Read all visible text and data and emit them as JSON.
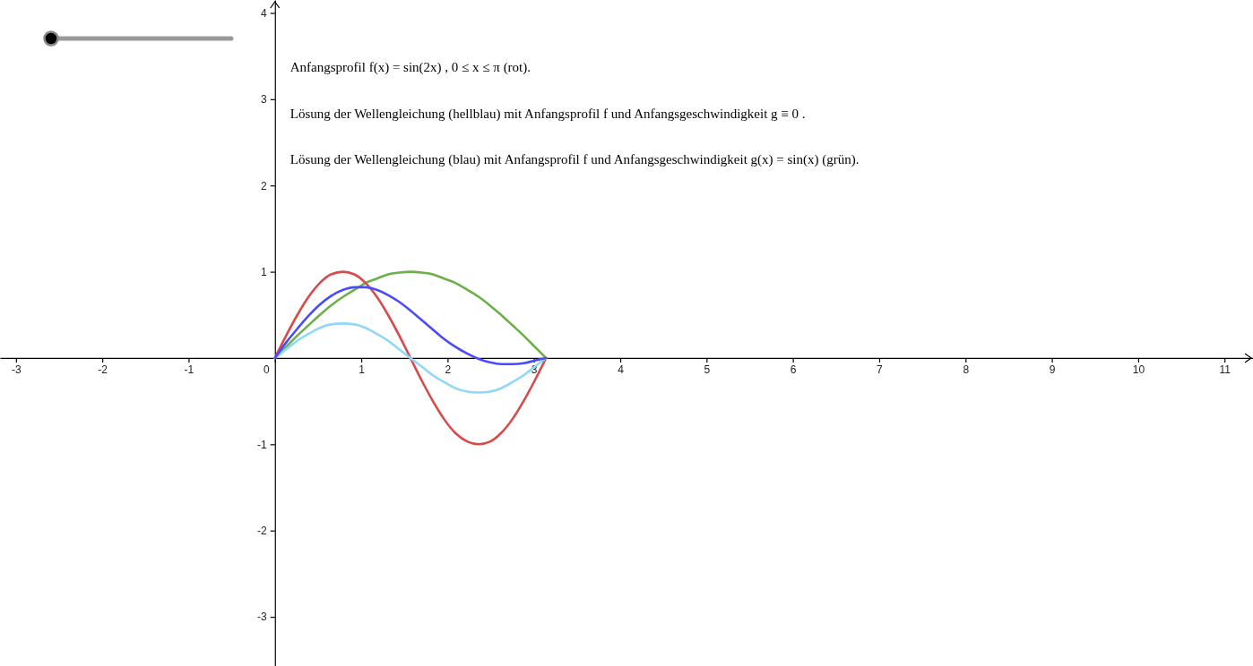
{
  "chart_data": {
    "type": "line",
    "annotations": [
      "Anfangsprofil f(x) = sin(2x) , 0 ≤ x ≤ π (rot).",
      "Lösung der Wellengleichung (hellblau) mit Anfangsprofil f und Anfangsgeschwindigkeit g ≡ 0 .",
      "Lösung der Wellengleichung (blau) mit Anfangsprofil f und Anfangsgeschwindigkeit g(x) = sin(x) (grün)."
    ],
    "xlim": [
      -3.185,
      11.33
    ],
    "ylim": [
      -3.57,
      4.15
    ],
    "xticks": [
      -3,
      -2,
      -1,
      0,
      1,
      2,
      3,
      4,
      5,
      6,
      7,
      8,
      9,
      10,
      11
    ],
    "yticks": [
      -3,
      -2,
      -1,
      1,
      2,
      3,
      4
    ],
    "x": [
      0,
      0.13,
      0.26,
      0.39,
      0.52,
      0.65,
      0.79,
      0.92,
      1.05,
      1.18,
      1.31,
      1.44,
      1.57,
      1.7,
      1.83,
      1.96,
      2.09,
      2.23,
      2.36,
      2.49,
      2.62,
      2.75,
      2.88,
      3.01,
      3.14
    ],
    "series": [
      {
        "color": "#6cb04a",
        "values": [
          0,
          0.13,
          0.26,
          0.38,
          0.5,
          0.61,
          0.71,
          0.79,
          0.87,
          0.92,
          0.97,
          0.99,
          1,
          0.99,
          0.97,
          0.92,
          0.87,
          0.79,
          0.71,
          0.61,
          0.5,
          0.38,
          0.26,
          0.13,
          0
        ]
      },
      {
        "color": "#d94a4a",
        "values": [
          0,
          0.26,
          0.5,
          0.71,
          0.87,
          0.97,
          1,
          0.97,
          0.87,
          0.71,
          0.5,
          0.26,
          0,
          -0.26,
          -0.5,
          -0.71,
          -0.87,
          -0.97,
          -1,
          -0.97,
          -0.87,
          -0.71,
          -0.5,
          -0.26,
          0
        ]
      },
      {
        "color": "#90d8fa",
        "values": [
          0,
          0.1,
          0.2,
          0.28,
          0.35,
          0.39,
          0.4,
          0.39,
          0.35,
          0.28,
          0.2,
          0.1,
          0,
          -0.1,
          -0.2,
          -0.28,
          -0.35,
          -0.39,
          -0.4,
          -0.39,
          -0.35,
          -0.28,
          -0.2,
          -0.1,
          0
        ]
      },
      {
        "color": "#4a4aff",
        "values": [
          0,
          0.18,
          0.34,
          0.49,
          0.62,
          0.72,
          0.79,
          0.82,
          0.82,
          0.79,
          0.73,
          0.65,
          0.55,
          0.44,
          0.33,
          0.22,
          0.13,
          0.05,
          -0.01,
          -0.05,
          -0.07,
          -0.07,
          -0.06,
          -0.03,
          0
        ]
      }
    ]
  }
}
